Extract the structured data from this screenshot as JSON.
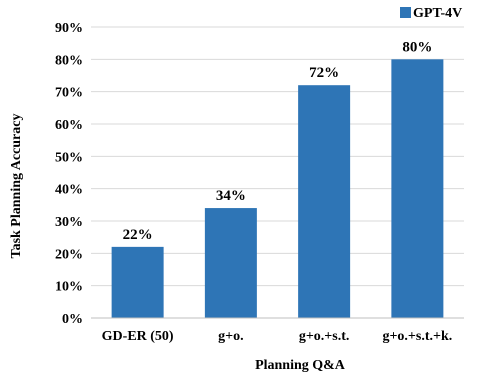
{
  "chart_data": {
    "type": "bar",
    "categories": [
      "GD-ER (50)",
      "g+o.",
      "g+o.+s.t.",
      "g+o.+s.t.+k."
    ],
    "series": [
      {
        "name": "GPT-4V",
        "values": [
          22,
          34,
          72,
          80
        ],
        "color": "#2e75b6"
      }
    ],
    "data_labels": [
      "22%",
      "34%",
      "72%",
      "80%"
    ],
    "xlabel": "Planning Q&A",
    "ylabel": "Task Planning Accuracy",
    "ylim": [
      0,
      90
    ],
    "yticks": [
      0,
      10,
      20,
      30,
      40,
      50,
      60,
      70,
      80,
      90
    ],
    "ytick_labels": [
      "0%",
      "10%",
      "20%",
      "30%",
      "40%",
      "50%",
      "60%",
      "70%",
      "80%",
      "90%"
    ],
    "grid": true,
    "legend_position": "top-right"
  }
}
